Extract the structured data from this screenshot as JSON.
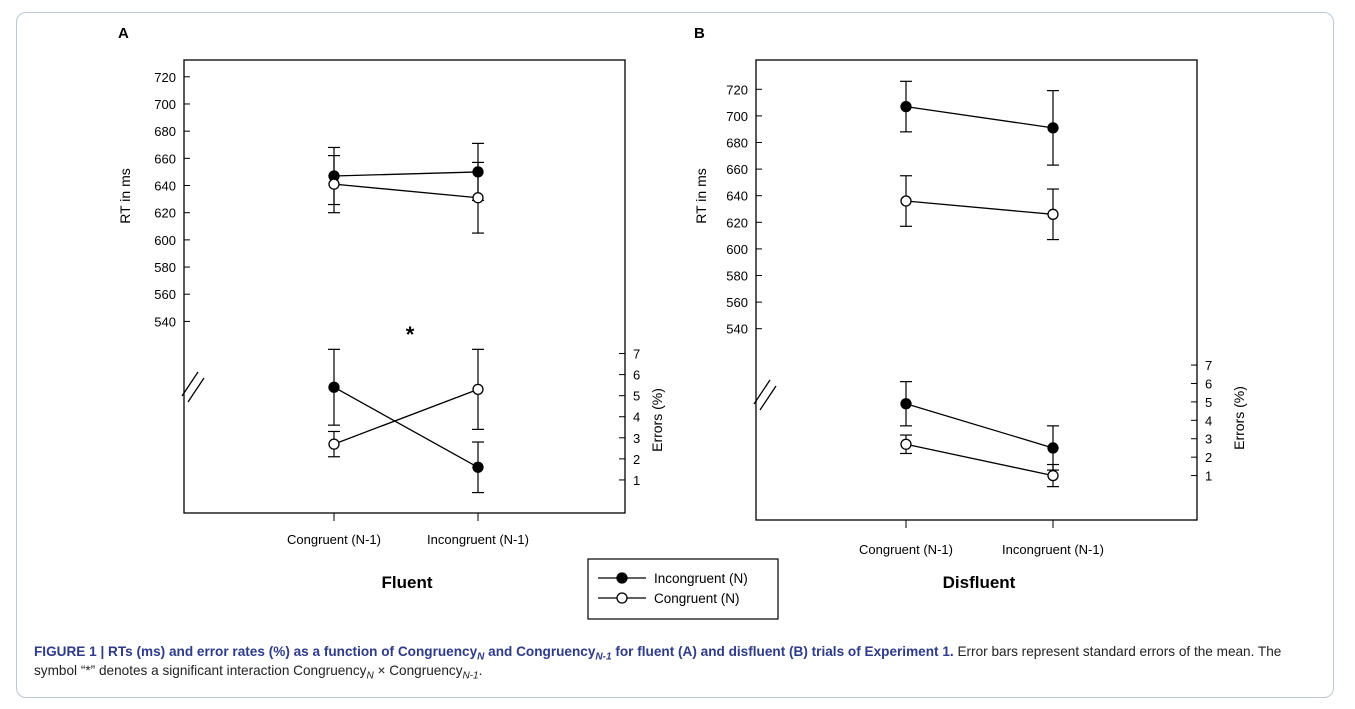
{
  "chart_data": [
    {
      "panel_label": "A",
      "type": "line",
      "title": "Fluent",
      "categories": [
        "Congruent (N-1)",
        "Incongruent (N-1)"
      ],
      "rt_axis": {
        "ylabel": "RT in ms",
        "ylim": [
          530,
          725
        ],
        "ticks": [
          540,
          560,
          580,
          600,
          620,
          640,
          660,
          680,
          700,
          720
        ]
      },
      "error_axis": {
        "ylabel": "Errors (%)",
        "ylim": [
          0,
          7.5
        ],
        "ticks": [
          1,
          2,
          3,
          4,
          5,
          6,
          7
        ]
      },
      "rt_series": [
        {
          "name": "Incongruent (N)",
          "marker": "filled",
          "values": [
            647,
            650
          ],
          "se": [
            21,
            21
          ]
        },
        {
          "name": "Congruent (N)",
          "marker": "open",
          "values": [
            641,
            631
          ],
          "se": [
            21,
            26
          ]
        }
      ],
      "error_series": [
        {
          "name": "Incongruent (N)",
          "marker": "filled",
          "values": [
            5.4,
            1.6
          ],
          "se": [
            1.8,
            1.2
          ]
        },
        {
          "name": "Congruent (N)",
          "marker": "open",
          "values": [
            2.7,
            5.3
          ],
          "se": [
            0.6,
            1.9
          ]
        }
      ],
      "annotation": "*"
    },
    {
      "panel_label": "B",
      "type": "line",
      "title": "Disfluent",
      "categories": [
        "Congruent (N-1)",
        "Incongruent (N-1)"
      ],
      "rt_axis": {
        "ylabel": "RT in ms",
        "ylim": [
          530,
          730
        ],
        "ticks": [
          540,
          560,
          580,
          600,
          620,
          640,
          660,
          680,
          700,
          720
        ]
      },
      "error_axis": {
        "ylabel": "Errors (%)",
        "ylim": [
          0,
          7.6
        ],
        "ticks": [
          1,
          2,
          3,
          4,
          5,
          6,
          7
        ]
      },
      "rt_series": [
        {
          "name": "Incongruent (N)",
          "marker": "filled",
          "values": [
            707,
            691
          ],
          "se": [
            19,
            28
          ]
        },
        {
          "name": "Congruent (N)",
          "marker": "open",
          "values": [
            636,
            626
          ],
          "se": [
            19,
            19
          ]
        }
      ],
      "error_series": [
        {
          "name": "Incongruent (N)",
          "marker": "filled",
          "values": [
            4.9,
            2.5
          ],
          "se": [
            1.2,
            1.2
          ]
        },
        {
          "name": "Congruent (N)",
          "marker": "open",
          "values": [
            2.7,
            1.0
          ],
          "se": [
            0.5,
            0.6
          ]
        }
      ]
    }
  ],
  "legend": {
    "items": [
      {
        "label": "Incongruent (N)",
        "marker": "filled"
      },
      {
        "label": "Congruent (N)",
        "marker": "open"
      }
    ]
  },
  "caption": {
    "lead_parts": [
      "FIGURE 1 | RTs (ms) and error rates (%) as a function of Congruency",
      "N",
      " and Congruency",
      "N-1",
      " for fluent (A) and disfluent (B) trials of Experiment 1."
    ],
    "body_parts": [
      " Error bars represent standard errors of the mean. The symbol “*” denotes a significant interaction Congruency",
      "N",
      " × Congruency",
      "N-1",
      "."
    ]
  }
}
